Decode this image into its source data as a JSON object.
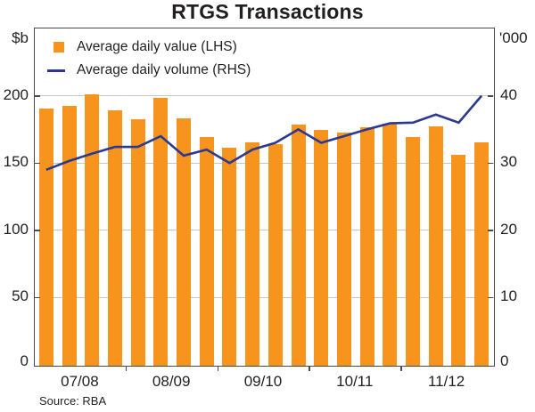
{
  "title": "RTGS Transactions",
  "left_axis_unit": "$b",
  "right_axis_unit": "'000",
  "source": "Source: RBA",
  "legend": [
    {
      "label": "Average daily value (LHS)",
      "swatch": "orange-square"
    },
    {
      "label": "Average daily volume (RHS)",
      "swatch": "navy-line"
    }
  ],
  "colors": {
    "bar": "#f7941d",
    "line": "#2b3990",
    "gridline": "#c6c6c6",
    "frame": "#4a4a4a",
    "text": "#231f20"
  },
  "chart_data": {
    "type": "bar+line",
    "title": "RTGS Transactions",
    "categories_years": [
      "07/08",
      "08/09",
      "09/10",
      "10/11",
      "11/12"
    ],
    "bars_per_year": 4,
    "n_points": 20,
    "series": [
      {
        "name": "Average daily value (LHS)",
        "type": "bar",
        "axis": "left",
        "unit": "$b",
        "values": [
          191,
          193,
          202,
          190,
          183,
          199,
          184,
          170,
          162,
          166,
          165,
          179,
          175,
          173,
          177,
          180,
          170,
          178,
          157,
          166
        ]
      },
      {
        "name": "Average daily volume (RHS)",
        "type": "line",
        "axis": "right",
        "unit": "'000",
        "values": [
          29,
          30.3,
          31.4,
          32.4,
          32.4,
          34,
          31.1,
          32,
          30,
          32,
          33,
          35,
          33,
          34,
          35,
          35.9,
          36,
          37.2,
          36,
          40
        ]
      }
    ],
    "left_axis": {
      "min": 0,
      "max": 250,
      "ticks": [
        0,
        50,
        100,
        150,
        200
      ]
    },
    "right_axis": {
      "min": 0,
      "max": 50,
      "ticks": [
        0,
        10,
        20,
        30,
        40
      ]
    },
    "gridlines_at_left_values": [
      50,
      100,
      150,
      200
    ],
    "grid": true,
    "legend_position": "top-left-inside"
  }
}
